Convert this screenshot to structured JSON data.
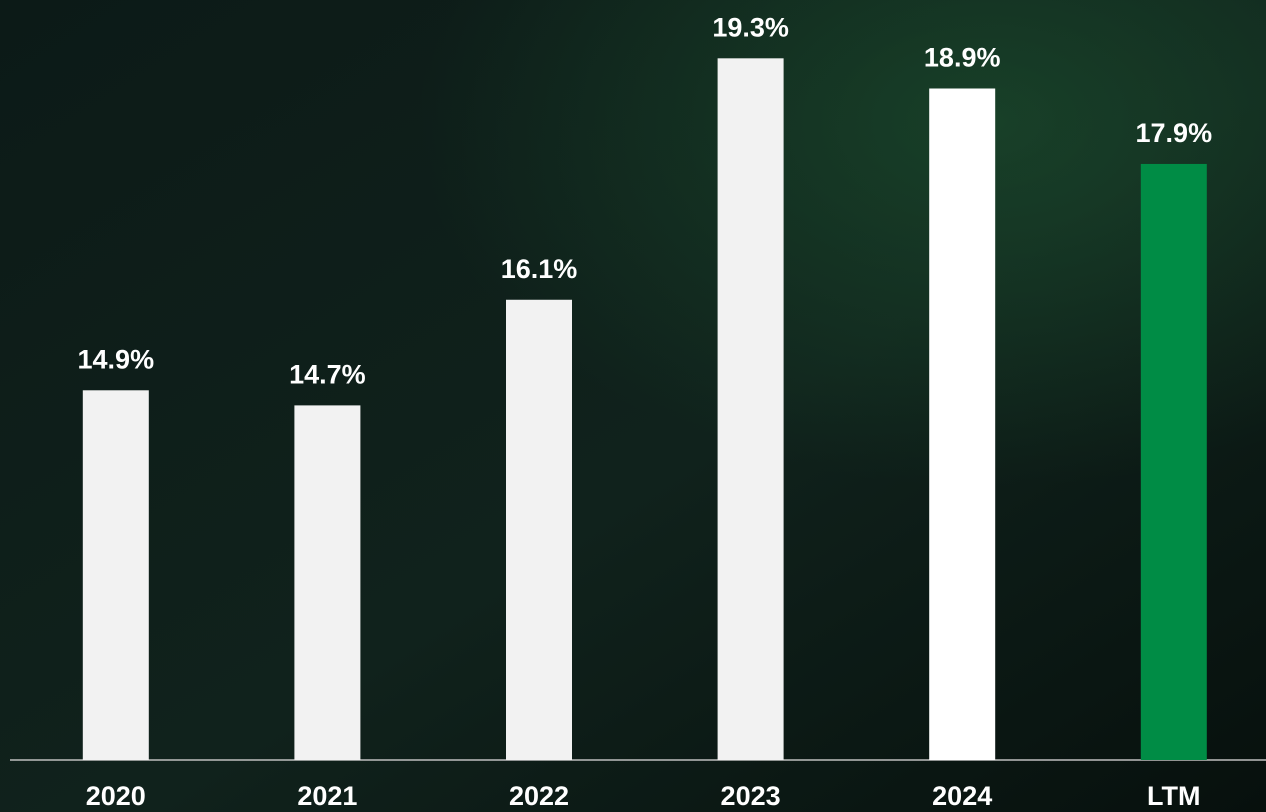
{
  "chart_data": {
    "type": "bar",
    "categories": [
      "2020",
      "2021",
      "2022",
      "2023",
      "2024",
      "LTM"
    ],
    "values": [
      14.9,
      14.7,
      16.1,
      19.3,
      18.9,
      17.9
    ],
    "value_labels": [
      "14.9%",
      "14.7%",
      "16.1%",
      "19.3%",
      "18.9%",
      "17.9%"
    ],
    "colors": [
      "#f2f2f2",
      "#f2f2f2",
      "#f2f2f2",
      "#f2f2f2",
      "#ffffff",
      "#008c45"
    ],
    "ylim": [
      10,
      20
    ]
  }
}
